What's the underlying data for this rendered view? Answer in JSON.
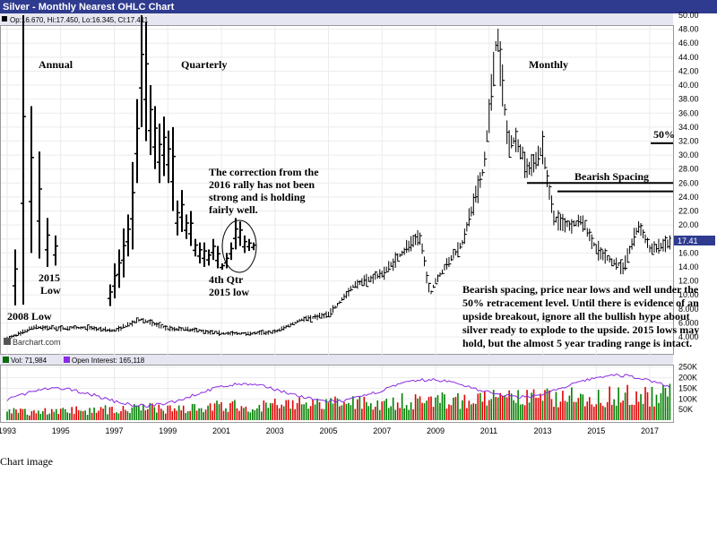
{
  "window": {
    "title": "Silver - Monthly Nearest OHLC Chart"
  },
  "legend_line": "Op:16.670, Hi:17.450, Lo:16.345, Cl:17.411",
  "price_panel": {
    "watermark": "Barchart.com",
    "y_ticks": [
      "50.00",
      "48.00",
      "46.00",
      "44.00",
      "42.00",
      "40.00",
      "38.00",
      "36.00",
      "34.00",
      "32.00",
      "30.00",
      "28.00",
      "26.00",
      "24.00",
      "22.00",
      "20.00",
      "18.00",
      "16.00",
      "14.00",
      "12.00",
      "10.00",
      "8.000",
      "6.000",
      "4.000"
    ],
    "last_price_badge": "17.41"
  },
  "volume_panel": {
    "vol_label": "Vol: 71,984",
    "oi_label": "Open Interest: 165,118",
    "y_ticks": [
      "250K",
      "200K",
      "150K",
      "100K",
      "50K"
    ]
  },
  "x_ticks": [
    "1993",
    "1995",
    "1997",
    "1999",
    "2001",
    "2003",
    "2005",
    "2007",
    "2009",
    "2011",
    "2013",
    "2015",
    "2017"
  ],
  "annotations": {
    "annual": "Annual",
    "quarterly": "Quarterly",
    "monthly": "Monthly",
    "low_2008": "2008 Low",
    "low_2015_a": "2015",
    "low_2015_b": "Low",
    "correction_1": "The correction from the",
    "correction_2": "2016 rally has not been",
    "correction_3": "strong and is holding",
    "correction_4": "fairly well.",
    "qtr_1": "4th Qtr",
    "qtr_2": "2015 low",
    "fifty_pct": "50%",
    "bearish_spacing": "Bearish Spacing",
    "note_1": "Bearish spacing, price near lows and well under the",
    "note_2": "50% retracement level.  Until there is evidence of an",
    "note_3": "upside breakout, ignore all the bullish hype about",
    "note_4": "silver ready to explode to the upside.  2015 lows may",
    "note_5": "hold, but the almost 5 year trading range is intact."
  },
  "caption": "Chart image",
  "colors": {
    "accent": "#2f3b8f",
    "up_volume": "#008000",
    "down_volume": "#e00000",
    "open_interest": "#8a2be2"
  },
  "chart_data": {
    "type": "line",
    "title": "Silver - Monthly Nearest OHLC Chart",
    "ylim": [
      3,
      50
    ],
    "last": {
      "open": 16.67,
      "high": 17.45,
      "low": 16.345,
      "close": 17.411
    },
    "inset_annual": [
      {
        "high": 16.5,
        "low": 8.5
      },
      {
        "high": 50.0,
        "low": 8.6
      },
      {
        "high": 37.0,
        "low": 16.0
      },
      {
        "high": 30.5,
        "low": 15.2
      },
      {
        "high": 21.0,
        "low": 14.0
      },
      {
        "high": 18.5,
        "low": 14.2
      }
    ],
    "inset_quarterly": [
      {
        "high": 11.5,
        "low": 8.4
      },
      {
        "high": 14.5,
        "low": 9.5
      },
      {
        "high": 16.5,
        "low": 11.0
      },
      {
        "high": 19.5,
        "low": 12.5
      },
      {
        "high": 21.5,
        "low": 15.5
      },
      {
        "high": 29.0,
        "low": 16.5
      },
      {
        "high": 38.0,
        "low": 26.0
      },
      {
        "high": 50.0,
        "low": 34.0
      },
      {
        "high": 49.0,
        "low": 32.0
      },
      {
        "high": 40.0,
        "low": 30.0
      },
      {
        "high": 37.0,
        "low": 28.0
      },
      {
        "high": 34.5,
        "low": 26.0
      },
      {
        "high": 35.5,
        "low": 27.0
      },
      {
        "high": 33.5,
        "low": 26.0
      },
      {
        "high": 34.0,
        "low": 22.0
      },
      {
        "high": 23.5,
        "low": 18.5
      },
      {
        "high": 25.0,
        "low": 19.0
      },
      {
        "high": 21.5,
        "low": 18.0
      },
      {
        "high": 22.0,
        "low": 17.0
      },
      {
        "high": 18.0,
        "low": 15.5
      },
      {
        "high": 17.5,
        "low": 14.5
      },
      {
        "high": 17.5,
        "low": 14.0
      },
      {
        "high": 16.5,
        "low": 14.2
      },
      {
        "high": 18.0,
        "low": 15.0
      },
      {
        "high": 17.0,
        "low": 13.8
      },
      {
        "high": 14.5,
        "low": 13.6
      },
      {
        "high": 16.0,
        "low": 13.8
      },
      {
        "high": 17.5,
        "low": 15.0
      },
      {
        "high": 21.0,
        "low": 16.5
      },
      {
        "high": 20.5,
        "low": 17.0
      },
      {
        "high": 18.5,
        "low": 16.0
      },
      {
        "high": 18.0,
        "low": 16.3
      },
      {
        "high": 17.5,
        "low": 16.4
      }
    ],
    "monthly_anchors": [
      [
        "1993",
        3.8
      ],
      [
        "1993.5",
        4.5
      ],
      [
        "1994",
        5.4
      ],
      [
        "1995",
        5.2
      ],
      [
        "1996",
        5.3
      ],
      [
        "1997",
        4.9
      ],
      [
        "1998",
        6.5
      ],
      [
        "1999",
        5.2
      ],
      [
        "2000",
        5.0
      ],
      [
        "2001",
        4.5
      ],
      [
        "2002",
        4.5
      ],
      [
        "2003",
        4.7
      ],
      [
        "2004",
        6.5
      ],
      [
        "2005",
        7.2
      ],
      [
        "2006",
        11.5
      ],
      [
        "2007",
        13.0
      ],
      [
        "2008",
        17.0
      ],
      [
        "2008.4",
        18.5
      ],
      [
        "2008.8",
        10.0
      ],
      [
        "2009",
        12.0
      ],
      [
        "2010",
        17.5
      ],
      [
        "2010.8",
        28.0
      ],
      [
        "2011.3",
        47.5
      ],
      [
        "2011.7",
        32.0
      ],
      [
        "2012",
        32.0
      ],
      [
        "2012.5",
        28.0
      ],
      [
        "2013",
        31.0
      ],
      [
        "2013.4",
        21.0
      ],
      [
        "2014",
        20.0
      ],
      [
        "2014.5",
        20.5
      ],
      [
        "2015",
        16.5
      ],
      [
        "2015.5",
        15.0
      ],
      [
        "2016",
        14.0
      ],
      [
        "2016.6",
        20.0
      ],
      [
        "2017",
        16.5
      ],
      [
        "2017.7",
        17.4
      ]
    ],
    "reference_levels": {
      "fifty_percent": 31.7,
      "bearish_spacing_upper": 26.0,
      "bearish_spacing_lower": 24.8
    }
  }
}
